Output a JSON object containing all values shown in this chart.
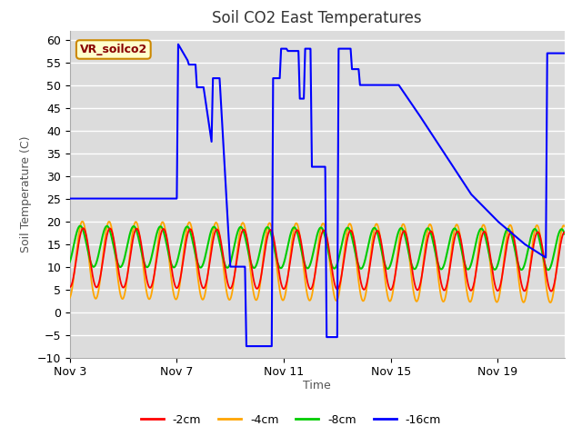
{
  "title": "Soil CO2 East Temperatures",
  "xlabel": "Time",
  "ylabel": "Soil Temperature (C)",
  "ylim": [
    -10,
    62
  ],
  "yticks": [
    -10,
    -5,
    0,
    5,
    10,
    15,
    20,
    25,
    30,
    35,
    40,
    45,
    50,
    55,
    60
  ],
  "plot_bg": "#dcdcdc",
  "fig_bg": "#ffffff",
  "grid_color": "#ffffff",
  "series_colors": {
    "-2cm": "#ff0000",
    "-4cm": "#ffa500",
    "-8cm": "#00cc00",
    "-16cm": "#0000ff"
  },
  "annotation_box": {
    "text": "VR_soilco2",
    "facecolor": "#ffffcc",
    "edgecolor": "#cc8800",
    "textcolor": "#880000"
  },
  "xtick_labels": [
    "Nov 3",
    "Nov 7",
    "Nov 11",
    "Nov 15",
    "Nov 19"
  ],
  "xtick_positions": [
    3,
    7,
    11,
    15,
    19
  ],
  "xmin": 3,
  "xmax": 21.5,
  "legend_entries": [
    "-2cm",
    "-4cm",
    "-8cm",
    "-16cm"
  ],
  "blue16_keypoints_t": [
    3.0,
    7.0,
    7.05,
    7.4,
    7.45,
    7.7,
    7.75,
    8.0,
    8.3,
    8.35,
    8.6,
    9.0,
    9.55,
    9.6,
    10.55,
    10.6,
    10.85,
    10.9,
    11.1,
    11.15,
    11.55,
    11.6,
    11.75,
    11.8,
    12.0,
    12.05,
    12.55,
    12.6,
    13.0,
    13.05,
    13.5,
    13.55,
    13.8,
    13.85,
    15.3,
    16.0,
    17.0,
    18.0,
    19.0,
    20.0,
    20.8,
    20.85,
    21.4
  ],
  "blue16_keypoints_v": [
    25.0,
    25.0,
    59.0,
    55.5,
    54.5,
    54.5,
    49.5,
    49.5,
    37.5,
    51.5,
    51.5,
    10.0,
    10.0,
    -7.5,
    -7.5,
    51.5,
    51.5,
    58.0,
    58.0,
    57.5,
    57.5,
    47.0,
    47.0,
    58.0,
    58.0,
    32.0,
    32.0,
    -5.5,
    -5.5,
    58.0,
    58.0,
    53.5,
    53.5,
    50.0,
    50.0,
    44.0,
    35.0,
    26.0,
    20.0,
    15.0,
    12.0,
    57.0,
    57.0
  ]
}
